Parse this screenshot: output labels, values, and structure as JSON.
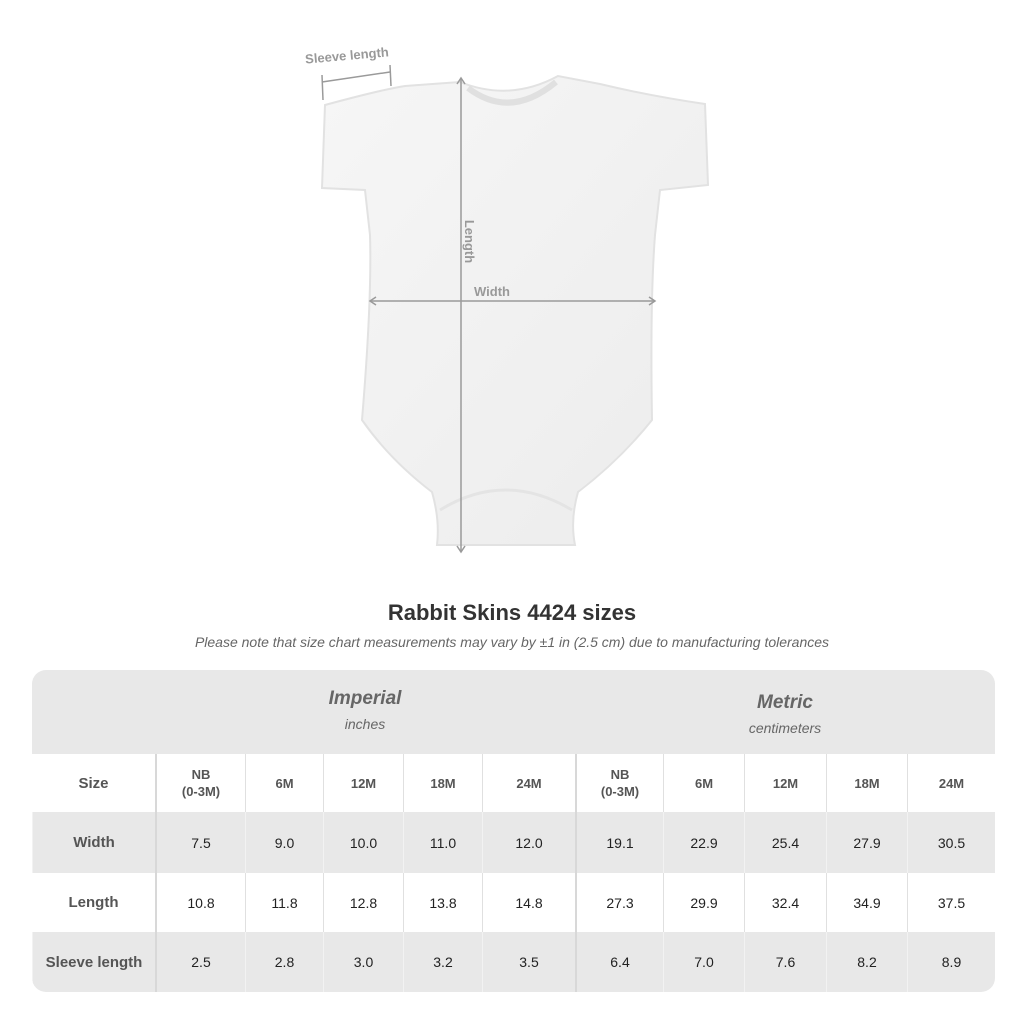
{
  "diagram": {
    "sleeve_label": "Sleeve length",
    "length_label": "Length",
    "width_label": "Width"
  },
  "title": "Rabbit Skins 4424 sizes",
  "note": "Please note that size chart measurements may vary by ±1 in (2.5 cm) due to manufacturing tolerances",
  "table": {
    "imperial": {
      "name": "Imperial",
      "unit": "inches"
    },
    "metric": {
      "name": "Metric",
      "unit": "centimeters"
    },
    "size_label": "Size",
    "sizes": [
      "NB\n(0-3M)",
      "6M",
      "12M",
      "18M",
      "24M"
    ],
    "rows": [
      {
        "label": "Width",
        "imperial": [
          "7.5",
          "9.0",
          "10.0",
          "11.0",
          "12.0"
        ],
        "metric": [
          "19.1",
          "22.9",
          "25.4",
          "27.9",
          "30.5"
        ]
      },
      {
        "label": "Length",
        "imperial": [
          "10.8",
          "11.8",
          "12.8",
          "13.8",
          "14.8"
        ],
        "metric": [
          "27.3",
          "29.9",
          "32.4",
          "34.9",
          "37.5"
        ]
      },
      {
        "label": "Sleeve length",
        "imperial": [
          "2.5",
          "2.8",
          "3.0",
          "3.2",
          "3.5"
        ],
        "metric": [
          "6.4",
          "7.0",
          "7.6",
          "8.2",
          "8.9"
        ]
      }
    ]
  }
}
